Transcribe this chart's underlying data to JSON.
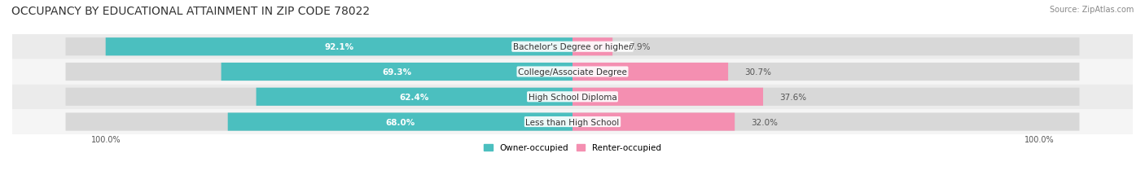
{
  "title": "OCCUPANCY BY EDUCATIONAL ATTAINMENT IN ZIP CODE 78022",
  "source": "Source: ZipAtlas.com",
  "categories": [
    "Less than High School",
    "High School Diploma",
    "College/Associate Degree",
    "Bachelor's Degree or higher"
  ],
  "owner_values": [
    68.0,
    62.4,
    69.3,
    92.1
  ],
  "renter_values": [
    32.0,
    37.6,
    30.7,
    7.9
  ],
  "owner_color": "#4bbfbf",
  "renter_color": "#f48fb1",
  "bar_bg_color": "#e8e8e8",
  "row_bg_colors": [
    "#f5f5f5",
    "#ebebeb"
  ],
  "title_fontsize": 10,
  "label_fontsize": 7.5,
  "tick_fontsize": 7,
  "source_fontsize": 7,
  "legend_fontsize": 7.5,
  "axis_label_left": "100.0%",
  "axis_label_right": "100.0%",
  "background_color": "#ffffff"
}
